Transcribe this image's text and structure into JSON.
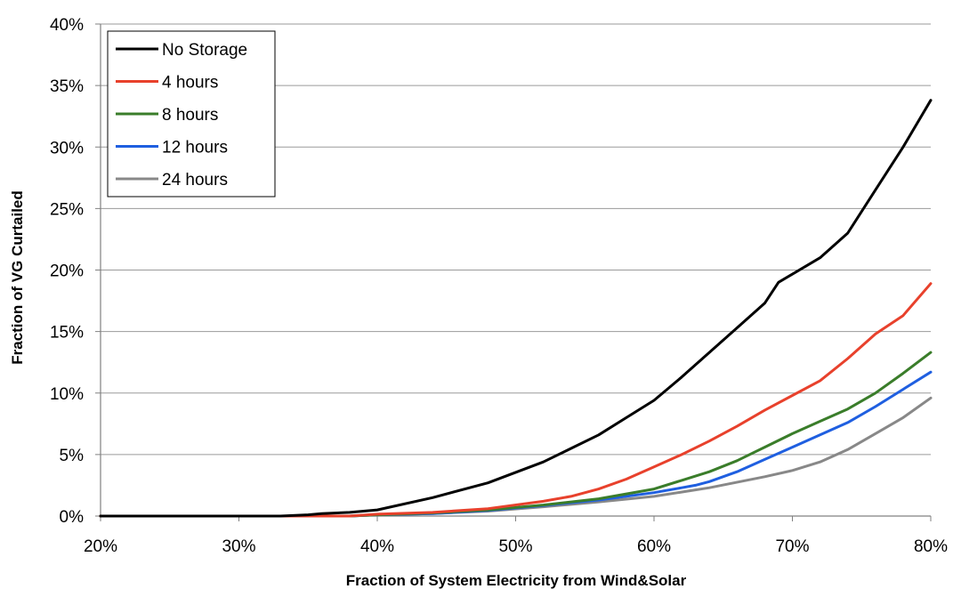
{
  "chart_data": {
    "type": "line",
    "title": "",
    "xlabel": "Fraction of System Electricity from Wind&Solar",
    "ylabel": "Fraction of VG Curtailed",
    "xlim": [
      20,
      80
    ],
    "ylim": [
      0,
      40
    ],
    "x_ticks": [
      "20%",
      "30%",
      "40%",
      "50%",
      "60%",
      "70%",
      "80%"
    ],
    "y_ticks": [
      "0%",
      "5%",
      "10%",
      "15%",
      "20%",
      "25%",
      "30%",
      "35%",
      "40%"
    ],
    "grid": "horizontal",
    "legend_position": "top-left",
    "series": [
      {
        "name": "No Storage",
        "color": "#000000",
        "x": [
          20,
          30,
          33,
          35,
          36,
          38,
          40,
          44,
          48,
          52,
          54,
          56,
          58,
          60,
          62,
          64,
          66,
          68,
          69,
          72,
          74,
          76,
          78,
          80
        ],
        "y": [
          0,
          0,
          0,
          0.1,
          0.2,
          0.3,
          0.5,
          1.5,
          2.7,
          4.4,
          5.5,
          6.6,
          8.0,
          9.4,
          11.3,
          13.3,
          15.3,
          17.3,
          19.0,
          21.0,
          23.0,
          26.5,
          30.0,
          33.8
        ]
      },
      {
        "name": "4 hours",
        "color": "#e8412c",
        "x": [
          20,
          34,
          38,
          40,
          44,
          48,
          52,
          54,
          56,
          58,
          60,
          62,
          64,
          66,
          68,
          70,
          72,
          74,
          76,
          78,
          80
        ],
        "y": [
          0,
          0,
          0,
          0.15,
          0.3,
          0.6,
          1.2,
          1.6,
          2.2,
          3.0,
          4.0,
          5.0,
          6.1,
          7.3,
          8.6,
          9.8,
          11.0,
          12.8,
          14.8,
          16.3,
          18.9
        ]
      },
      {
        "name": "8 hours",
        "color": "#3a7d2a",
        "x": [
          20,
          34,
          38,
          40,
          44,
          48,
          52,
          56,
          60,
          62,
          64,
          66,
          68,
          70,
          72,
          74,
          76,
          78,
          80
        ],
        "y": [
          0,
          0,
          0,
          0.1,
          0.25,
          0.5,
          0.9,
          1.4,
          2.2,
          2.9,
          3.6,
          4.5,
          5.6,
          6.7,
          7.7,
          8.7,
          10.0,
          11.6,
          13.3
        ]
      },
      {
        "name": "12 hours",
        "color": "#1f5fe0",
        "x": [
          20,
          34,
          38,
          40,
          44,
          48,
          52,
          56,
          60,
          62,
          63,
          64,
          66,
          68,
          70,
          72,
          74,
          76,
          78,
          80
        ],
        "y": [
          0,
          0,
          0,
          0.1,
          0.2,
          0.45,
          0.85,
          1.3,
          1.9,
          2.3,
          2.5,
          2.8,
          3.6,
          4.6,
          5.6,
          6.6,
          7.6,
          8.9,
          10.3,
          11.7
        ]
      },
      {
        "name": "24 hours",
        "color": "#888888",
        "x": [
          20,
          34,
          38,
          40,
          44,
          48,
          52,
          56,
          60,
          64,
          68,
          70,
          72,
          74,
          76,
          78,
          80
        ],
        "y": [
          0,
          0,
          0,
          0.1,
          0.2,
          0.4,
          0.75,
          1.15,
          1.6,
          2.3,
          3.2,
          3.7,
          4.4,
          5.4,
          6.7,
          8.0,
          9.6
        ]
      }
    ]
  }
}
